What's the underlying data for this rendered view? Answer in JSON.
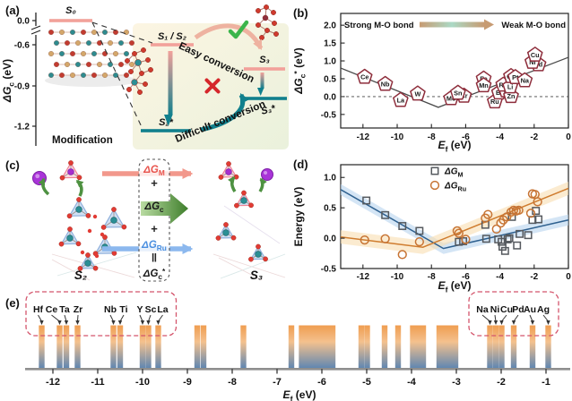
{
  "colors": {
    "salmon": "#f2a19a",
    "teal": "#11808d",
    "salmon_arrow": "#eeb2a0",
    "green_check": "#3bb54b",
    "red_cross": "#d5262b",
    "pentagon_red": "#8e2e3c",
    "trend_gray": "#4a4a4a",
    "square_gray": "#55595e",
    "circle_orange": "#c77434",
    "line_blue": "#2e608f",
    "line_orange": "#cf7c2e",
    "band_blue": "#b8d3ee",
    "band_orange": "#f8ddb0",
    "bar_orange": "#ef9d50",
    "bar_blue": "#5c85b2",
    "box_red": "#d4556c",
    "dgm_red": "#e8534c",
    "dgru_blue": "#4a8fe0",
    "green_arrow_dark": "#3e7e2b",
    "green_arrow_light": "#b9dba2",
    "mo_tan": "#c79b72",
    "mo_mint": "#abd9c5"
  },
  "panels": {
    "a": {
      "label": "(a)",
      "ylabel": {
        "main": "ΔG",
        "sub": "c",
        "rest": " (eV)"
      },
      "yticks": [
        "0.0",
        "-0.6",
        "-0.9",
        "-1.2"
      ],
      "levels": [
        {
          "label": "S₀",
          "energy_eV": 0.0
        },
        {
          "label": "S₁ / S₂",
          "energy_eV": -0.6
        },
        {
          "label": "S₃",
          "energy_eV": -0.8
        },
        {
          "label": "S₂*",
          "energy_eV": -1.25
        },
        {
          "label": "S₃*",
          "energy_eV": -1.0
        }
      ],
      "easy_text": "Easy conversion",
      "difficult_text": "Difficult conversion",
      "modification_text": "Modification"
    },
    "b": {
      "label": "(b)",
      "strong_label": "Strong M-O bond",
      "weak_label": "Weak M-O bond"
    },
    "c": {
      "label": "(c)",
      "s2_label": "S₂",
      "s3_label": "S₃",
      "terms": [
        {
          "main": "ΔG",
          "sub": "M",
          "color": "#e8534c"
        },
        {
          "op": "+"
        },
        {
          "main": "ΔG",
          "sub": "c",
          "color": "#1a1a1a"
        },
        {
          "op": "+"
        },
        {
          "main": "ΔG",
          "sub": "Ru",
          "color": "#4a8fe0"
        },
        {
          "op": "‖"
        },
        {
          "main": "ΔG",
          "sub": "c",
          "sup": "*",
          "color": "#1a1a1a"
        }
      ]
    },
    "d": {
      "label": "(d)"
    },
    "e": {
      "label": "(e)"
    }
  },
  "chart_data": [
    {
      "id": "panel-b",
      "type": "scatter",
      "marker": "pentagon",
      "xlabel": {
        "main": "E",
        "sub": "f",
        "rest": " (eV)"
      },
      "ylabel": {
        "main": "ΔG",
        "sub": "c",
        "sup": "*",
        "rest": " (eV)"
      },
      "xlim": [
        -13.3,
        0
      ],
      "ylim": [
        -0.88,
        2.33
      ],
      "xticks": [
        "-12",
        "-10",
        "-8",
        "-6",
        "-4",
        "-2",
        "0"
      ],
      "yticks": [
        "-0.5",
        "0.0",
        "0.5",
        "1.0",
        "1.5",
        "2.0"
      ],
      "zero_line": 0,
      "trend_line": [
        [
          -13.3,
          0.8
        ],
        [
          -7.6,
          -0.3
        ],
        [
          0,
          1.1
        ]
      ],
      "points": [
        {
          "label": "Ce",
          "x": -11.9,
          "y": 0.55
        },
        {
          "label": "Nb",
          "x": -10.7,
          "y": 0.35
        },
        {
          "label": "La",
          "x": -9.8,
          "y": -0.1
        },
        {
          "label": "W",
          "x": -8.8,
          "y": 0.08
        },
        {
          "label": "Mo",
          "x": -6.85,
          "y": -0.05
        },
        {
          "label": "Cr",
          "x": -6.1,
          "y": 0.02
        },
        {
          "label": "Sn",
          "x": -6.45,
          "y": 0.1
        },
        {
          "label": "Fe",
          "x": -4.95,
          "y": 0.5
        },
        {
          "label": "Mn",
          "x": -4.95,
          "y": 0.31
        },
        {
          "label": "Ru",
          "x": -4.3,
          "y": -0.14
        },
        {
          "label": "Bi",
          "x": -4.05,
          "y": 0.11
        },
        {
          "label": "Ir",
          "x": -3.65,
          "y": 0.17
        },
        {
          "label": "Rh",
          "x": -3.8,
          "y": 0.33
        },
        {
          "label": "Zn",
          "x": -3.35,
          "y": 0.01
        },
        {
          "label": "Li",
          "x": -3.4,
          "y": 0.28
        },
        {
          "label": "Co",
          "x": -3.35,
          "y": 0.57
        },
        {
          "label": "Pt",
          "x": -3.1,
          "y": 0.54
        },
        {
          "label": "Na",
          "x": -2.55,
          "y": 0.45
        },
        {
          "label": "Pd",
          "x": -1.75,
          "y": 0.9
        },
        {
          "label": "Ni",
          "x": -2.1,
          "y": 0.97
        },
        {
          "label": "Cu",
          "x": -1.95,
          "y": 1.17
        }
      ]
    },
    {
      "id": "panel-d",
      "type": "scatter",
      "xlabel": {
        "main": "E",
        "sub": "f",
        "rest": " (eV)"
      },
      "ylabel": "Energy (eV)",
      "xlim": [
        -13.3,
        0
      ],
      "ylim": [
        -0.5,
        1.21
      ],
      "xticks": [
        "-12",
        "-10",
        "-8",
        "-6",
        "-4",
        "-2",
        "0"
      ],
      "yticks": [
        "-0.5",
        "0.0",
        "0.5",
        "1.0"
      ],
      "series": [
        {
          "name": {
            "main": "ΔG",
            "sub": "M"
          },
          "marker": "square",
          "color": "#55595e",
          "line_color": "#2e608f",
          "band_color": "#b8d3ee",
          "band_halfwidth": 0.09,
          "trend_line": [
            [
              -13.3,
              0.8
            ],
            [
              -7.3,
              -0.17
            ],
            [
              0,
              0.3
            ]
          ],
          "points": [
            [
              -11.8,
              0.62
            ],
            [
              -10.7,
              0.38
            ],
            [
              -9.7,
              0.2
            ],
            [
              -8.7,
              0.12
            ],
            [
              -6.4,
              -0.06
            ],
            [
              -6.15,
              -0.05
            ],
            [
              -4.85,
              0.22
            ],
            [
              -4.8,
              -0.01
            ],
            [
              -4.1,
              -0.02
            ],
            [
              -3.9,
              -0.06
            ],
            [
              -3.85,
              -0.14
            ],
            [
              -3.7,
              -0.21
            ],
            [
              -3.55,
              -0.02
            ],
            [
              -3.45,
              0.0
            ],
            [
              -3.3,
              0.35
            ],
            [
              -3.0,
              -0.12
            ],
            [
              -2.85,
              0.07
            ],
            [
              -2.35,
              0.05
            ],
            [
              -2.1,
              0.3
            ],
            [
              -1.9,
              0.45
            ],
            [
              -1.75,
              0.31
            ]
          ]
        },
        {
          "name": {
            "main": "ΔG",
            "sub": "Ru"
          },
          "marker": "circle",
          "color": "#c77434",
          "line_color": "#cf7c2e",
          "band_color": "#f8ddb0",
          "band_halfwidth": 0.11,
          "trend_line": [
            [
              -13.3,
              0.02
            ],
            [
              -8.5,
              -0.15
            ],
            [
              0,
              0.82
            ]
          ],
          "points": [
            [
              -11.9,
              -0.03
            ],
            [
              -10.7,
              -0.01
            ],
            [
              -9.7,
              -0.27
            ],
            [
              -8.7,
              -0.06
            ],
            [
              -6.5,
              0.12
            ],
            [
              -6.4,
              0.08
            ],
            [
              -6.0,
              -0.02
            ],
            [
              -4.85,
              0.33
            ],
            [
              -4.7,
              0.39
            ],
            [
              -4.2,
              0.15
            ],
            [
              -3.95,
              0.25
            ],
            [
              -3.8,
              0.3
            ],
            [
              -3.6,
              0.35
            ],
            [
              -3.35,
              0.43
            ],
            [
              -3.2,
              0.46
            ],
            [
              -3.05,
              0.45
            ],
            [
              -2.9,
              0.46
            ],
            [
              -2.2,
              0.41
            ],
            [
              -2.1,
              0.73
            ],
            [
              -1.95,
              0.72
            ],
            [
              -1.8,
              0.6
            ]
          ]
        }
      ]
    },
    {
      "id": "panel-e",
      "type": "barcode",
      "xlabel": {
        "main": "E",
        "sub": "f",
        "rest": " (eV)"
      },
      "xticks": [
        "-12",
        "-11",
        "-10",
        "-9",
        "-8",
        "-7",
        "-6",
        "-5",
        "-4",
        "-3",
        "-2",
        "-1"
      ],
      "bars": [
        {
          "x": -12.25,
          "label": "Hf",
          "label_x": -12.33
        },
        {
          "x": -11.85,
          "label": "Ce",
          "label_x": -12.03
        },
        {
          "x": -11.7,
          "label": "Ta",
          "label_x": -11.74
        },
        {
          "x": -11.45,
          "label": "Zr",
          "label_x": -11.44
        },
        {
          "x": -10.65,
          "label": "Nb",
          "label_x": -10.72
        },
        {
          "x": -10.5,
          "label": "Ti",
          "label_x": -10.42
        },
        {
          "x": -10.0,
          "label": "Y",
          "label_x": -10.06
        },
        {
          "x": -9.87,
          "label": "Sc",
          "label_x": -9.82
        },
        {
          "x": -9.65,
          "label": "La",
          "label_x": -9.55
        },
        {
          "x": -8.78
        },
        {
          "x": -8.64
        },
        {
          "x": -7.75
        },
        {
          "x": -6.68
        },
        {
          "x": -6.45
        },
        {
          "x": -6.34
        },
        {
          "x": -6.23
        },
        {
          "x": -6.12
        },
        {
          "x": -6.0
        },
        {
          "x": -5.88
        },
        {
          "x": -5.76
        },
        {
          "x": -5.12
        },
        {
          "x": -4.99
        },
        {
          "x": -4.6
        },
        {
          "x": -4.3
        },
        {
          "x": -3.97
        },
        {
          "x": -3.86
        },
        {
          "x": -3.74
        },
        {
          "x": -3.38
        },
        {
          "x": -3.26
        },
        {
          "x": -3.14
        },
        {
          "x": -3.02
        },
        {
          "x": -2.25,
          "label": "Na",
          "label_x": -2.42
        },
        {
          "x": -2.12,
          "label": "Ni",
          "label_x": -2.14
        },
        {
          "x": -1.99,
          "label": "Cu",
          "label_x": -1.88
        },
        {
          "x": -1.72,
          "label": "Pd",
          "label_x": -1.62
        },
        {
          "x": -1.3,
          "label": "Au",
          "label_x": -1.36
        },
        {
          "x": -0.95,
          "label": "Ag",
          "label_x": -1.06
        }
      ],
      "boxes": [
        {
          "x1": -12.6,
          "x2": -9.25
        },
        {
          "x1": -2.72,
          "x2": -0.72
        }
      ]
    }
  ]
}
